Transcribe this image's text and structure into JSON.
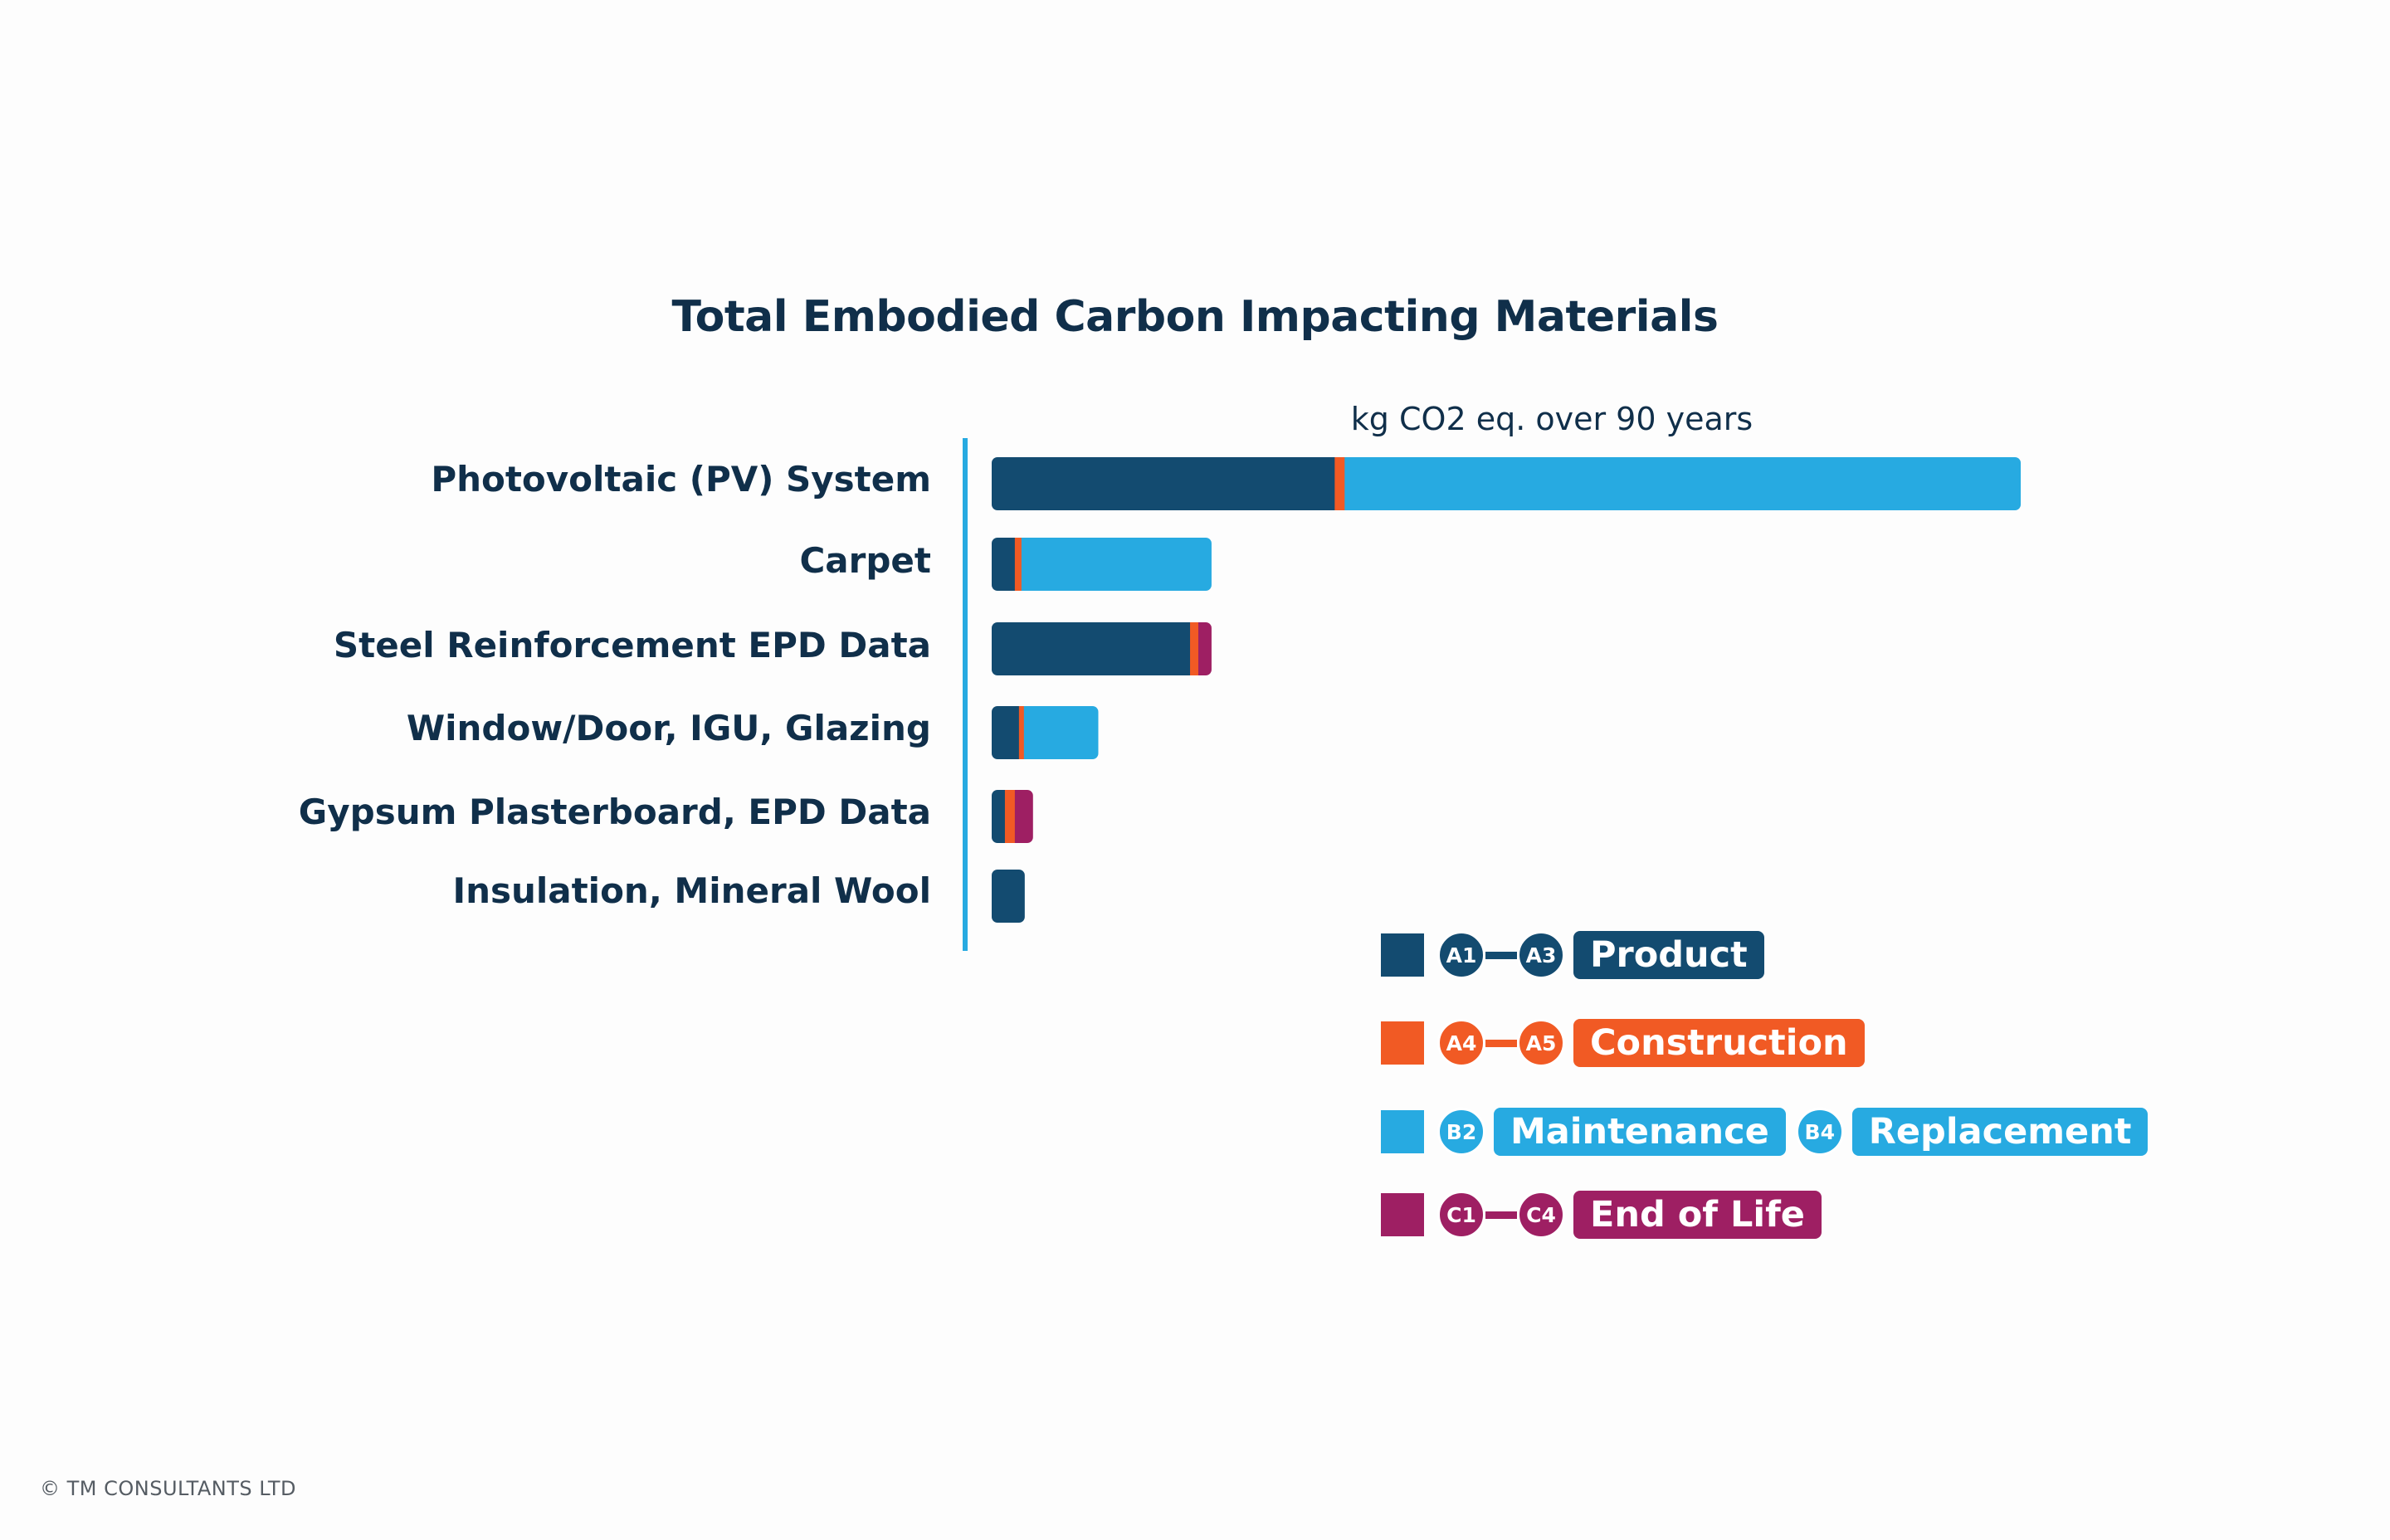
{
  "colors": {
    "product": "#134b70",
    "construction": "#f15a24",
    "replacement": "#27aae1",
    "end_of_life": "#9e1f63",
    "text": "#102f4a",
    "axis": "#27aae1"
  },
  "chart_data": {
    "type": "bar",
    "orientation": "horizontal",
    "stacked": true,
    "title": "Total Embodied Carbon Impacting Materials",
    "xlabel": "kg CO2 eq. over 90 years",
    "ylabel": "",
    "categories": [
      "Photovoltaic (PV) System",
      "Carpet",
      "Steel Reinforcement EPD Data",
      "Window/Door, IGU, Glazing",
      "Gypsum Plasterboard, EPD Data",
      "Insulation, Mineral Wool"
    ],
    "series": [
      {
        "key": "product",
        "values": [
          415,
          28,
          240,
          33,
          16,
          40
        ]
      },
      {
        "key": "construction",
        "values": [
          12,
          8,
          10,
          6,
          12,
          0
        ]
      },
      {
        "key": "replacement",
        "values": [
          818,
          230,
          0,
          90,
          0,
          0
        ]
      },
      {
        "key": "end_of_life",
        "values": [
          0,
          0,
          16,
          0,
          22,
          0
        ]
      }
    ],
    "xlim": [
      0,
      1250
    ],
    "grid": false,
    "axis_ticks_shown": false,
    "legend_placement": "bottom-right"
  },
  "legend": {
    "rows": [
      {
        "series": "product",
        "badges": [
          "A1",
          "A3"
        ],
        "joiner": "dash",
        "labels": [
          "Product"
        ]
      },
      {
        "series": "construction",
        "badges": [
          "A4",
          "A5"
        ],
        "joiner": "dash",
        "labels": [
          "Construction"
        ]
      },
      {
        "series": "replacement",
        "badges": [
          "B2",
          "B4"
        ],
        "joiner": "split",
        "labels": [
          "Maintenance",
          "Replacement"
        ]
      },
      {
        "series": "end_of_life",
        "badges": [
          "C1",
          "C4"
        ],
        "joiner": "dash",
        "labels": [
          "End of Life"
        ]
      }
    ]
  },
  "footer": {
    "copyright": "© TM CONSULTANTS LTD"
  }
}
